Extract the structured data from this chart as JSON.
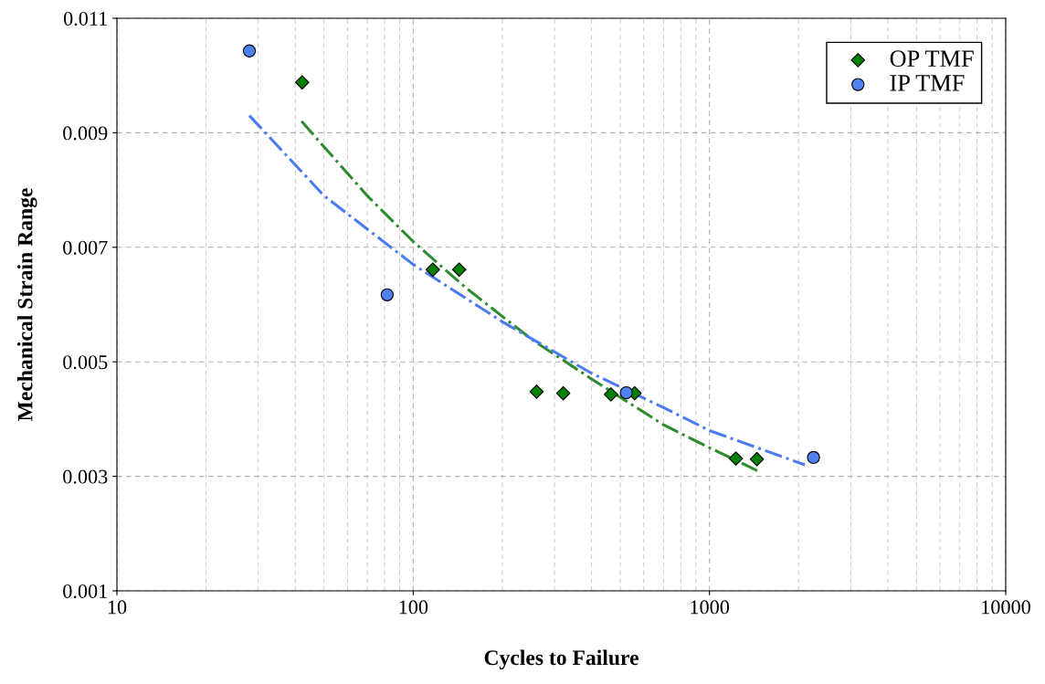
{
  "chart_data": {
    "type": "scatter",
    "xlabel": "Cycles to Failure",
    "ylabel": "Mechanical Strain Range",
    "log": "x",
    "xlim": [
      10,
      10000
    ],
    "xticks": [
      10,
      100,
      1000,
      10000
    ],
    "ylim": [
      0.001,
      0.011
    ],
    "yticks": [
      0.001,
      0.003,
      0.005,
      0.007,
      0.009,
      0.011
    ],
    "grid": true,
    "legend": "top right",
    "series": [
      {
        "name": "OP TMF",
        "marker": "diamond",
        "color": "#008000",
        "x": [
          42.2,
          116.5,
          143,
          261,
          321,
          465,
          559,
          1228,
          1446
        ],
        "values": [
          0.00988,
          0.00661,
          0.00661,
          0.00448,
          0.00445,
          0.00443,
          0.00445,
          0.00331,
          0.0033
        ]
      },
      {
        "name": "IP TMF",
        "marker": "circle",
        "color": "#4f81f0",
        "x": [
          28.0,
          81.7,
          524,
          2245
        ],
        "values": [
          0.01043,
          0.00617,
          0.00446,
          0.00333
        ]
      },
      {
        "type": "line",
        "line_style": "dashdot",
        "color": "#2e8b2e",
        "x": [
          42,
          70,
          100,
          150,
          250,
          400,
          700,
          1000,
          1450
        ],
        "values": [
          0.0092,
          0.0079,
          0.0071,
          0.0063,
          0.0054,
          0.0047,
          0.0039,
          0.0035,
          0.0031
        ]
      },
      {
        "type": "line",
        "line_style": "dashdot",
        "color": "#4a7cf0",
        "x": [
          28,
          50,
          100,
          200,
          400,
          700,
          1000,
          2100
        ],
        "values": [
          0.0093,
          0.0079,
          0.0067,
          0.0057,
          0.0048,
          0.0042,
          0.0038,
          0.0032
        ]
      }
    ]
  }
}
